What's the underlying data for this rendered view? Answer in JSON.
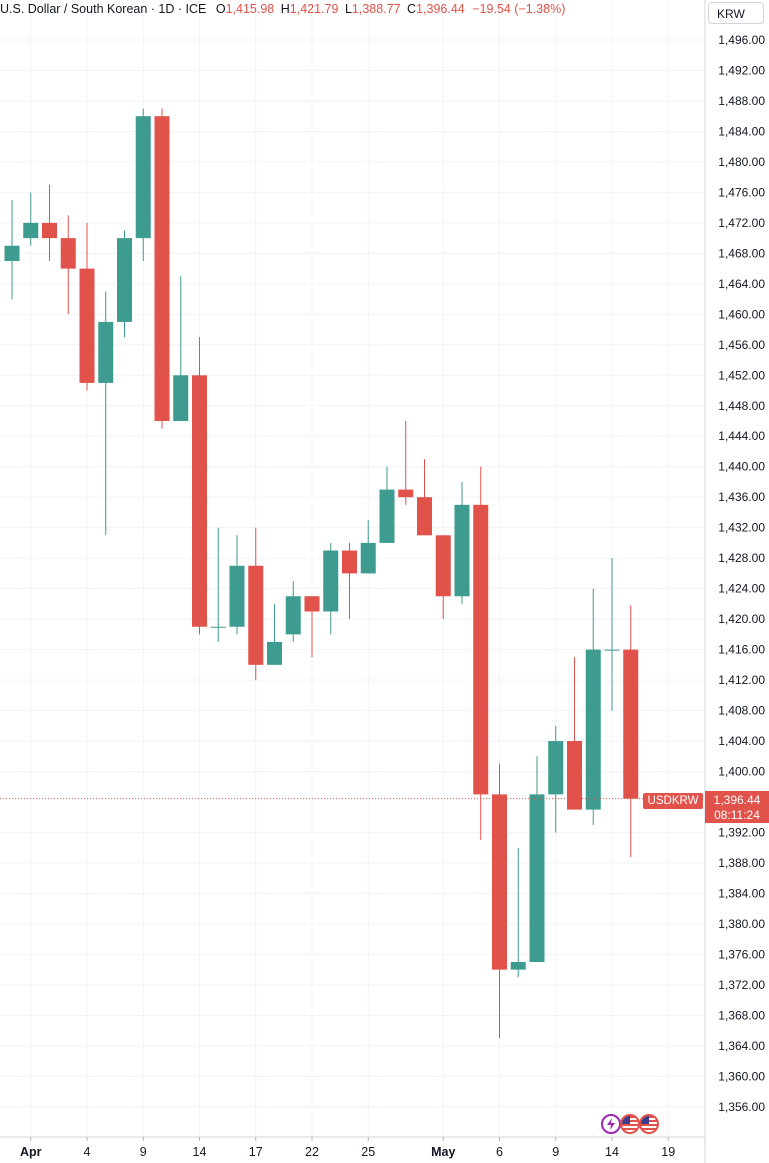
{
  "header": {
    "symbol": "U.S. Dollar / South Korean",
    "interval": "1D",
    "exchange": "ICE",
    "open_label": "O",
    "open": "1,415.98",
    "high_label": "H",
    "high": "1,421.79",
    "low_label": "L",
    "low": "1,388.77",
    "close_label": "C",
    "close": "1,396.44",
    "change": "−19.54 (−1.38%)"
  },
  "currency_button": "KRW",
  "last_price": {
    "symbol": "USDKRW",
    "value": "1,396.44",
    "countdown": "08:11:24"
  },
  "icons": [
    "lightning-icon",
    "us-flag-icon",
    "us-flag-icon"
  ],
  "colors": {
    "up": "#3d9b8f",
    "down": "#e0524a",
    "grid": "#f0f3fa",
    "text": "#131722"
  },
  "chart_data": {
    "type": "candlestick",
    "y_ticks": [
      "1,496.00",
      "1,492.00",
      "1,488.00",
      "1,484.00",
      "1,480.00",
      "1,476.00",
      "1,472.00",
      "1,468.00",
      "1,464.00",
      "1,460.00",
      "1,456.00",
      "1,452.00",
      "1,448.00",
      "1,444.00",
      "1,440.00",
      "1,436.00",
      "1,432.00",
      "1,428.00",
      "1,424.00",
      "1,420.00",
      "1,416.00",
      "1,412.00",
      "1,408.00",
      "1,404.00",
      "1,400.00",
      "1,392.00",
      "1,388.00",
      "1,384.00",
      "1,380.00",
      "1,376.00",
      "1,372.00",
      "1,368.00",
      "1,364.00",
      "1,360.00",
      "1,356.00"
    ],
    "x_ticks": [
      {
        "label": "Apr",
        "bold": true
      },
      {
        "label": "4"
      },
      {
        "label": "9"
      },
      {
        "label": "14"
      },
      {
        "label": "17"
      },
      {
        "label": "22"
      },
      {
        "label": "25"
      },
      {
        "label": "May",
        "bold": true
      },
      {
        "label": "6"
      },
      {
        "label": "9"
      },
      {
        "label": "14"
      },
      {
        "label": "19"
      }
    ],
    "ylim": [
      1353,
      1499
    ],
    "candles": [
      {
        "o": 1467,
        "h": 1475,
        "l": 1462,
        "c": 1469
      },
      {
        "o": 1470,
        "h": 1476,
        "l": 1469,
        "c": 1472
      },
      {
        "o": 1472,
        "h": 1477,
        "l": 1467,
        "c": 1470
      },
      {
        "o": 1470,
        "h": 1473,
        "l": 1460,
        "c": 1466
      },
      {
        "o": 1466,
        "h": 1472,
        "l": 1450,
        "c": 1451
      },
      {
        "o": 1451,
        "h": 1463,
        "l": 1431,
        "c": 1459
      },
      {
        "o": 1459,
        "h": 1471,
        "l": 1457,
        "c": 1470
      },
      {
        "o": 1470,
        "h": 1487,
        "l": 1467,
        "c": 1486
      },
      {
        "o": 1486,
        "h": 1487,
        "l": 1445,
        "c": 1446
      },
      {
        "o": 1446,
        "h": 1465,
        "l": 1446,
        "c": 1452
      },
      {
        "o": 1452,
        "h": 1457,
        "l": 1418,
        "c": 1419
      },
      {
        "o": 1419,
        "h": 1432,
        "l": 1417,
        "c": 1419
      },
      {
        "o": 1419,
        "h": 1431,
        "l": 1418,
        "c": 1427
      },
      {
        "o": 1427,
        "h": 1432,
        "l": 1412,
        "c": 1414
      },
      {
        "o": 1414,
        "h": 1422,
        "l": 1414,
        "c": 1417
      },
      {
        "o": 1418,
        "h": 1425,
        "l": 1417,
        "c": 1423
      },
      {
        "o": 1423,
        "h": 1423,
        "l": 1415,
        "c": 1421
      },
      {
        "o": 1421,
        "h": 1430,
        "l": 1418,
        "c": 1429
      },
      {
        "o": 1429,
        "h": 1430,
        "l": 1420,
        "c": 1426
      },
      {
        "o": 1426,
        "h": 1433,
        "l": 1426,
        "c": 1430
      },
      {
        "o": 1430,
        "h": 1440,
        "l": 1430,
        "c": 1437
      },
      {
        "o": 1437,
        "h": 1446,
        "l": 1435,
        "c": 1436
      },
      {
        "o": 1436,
        "h": 1441,
        "l": 1431,
        "c": 1431
      },
      {
        "o": 1431,
        "h": 1431,
        "l": 1420,
        "c": 1423
      },
      {
        "o": 1423,
        "h": 1438,
        "l": 1422,
        "c": 1435
      },
      {
        "o": 1435,
        "h": 1440,
        "l": 1391,
        "c": 1397
      },
      {
        "o": 1397,
        "h": 1401,
        "l": 1365,
        "c": 1374
      },
      {
        "o": 1374,
        "h": 1390,
        "l": 1373,
        "c": 1375
      },
      {
        "o": 1375,
        "h": 1402,
        "l": 1375,
        "c": 1397
      },
      {
        "o": 1397,
        "h": 1406,
        "l": 1392,
        "c": 1404
      },
      {
        "o": 1404,
        "h": 1415,
        "l": 1395,
        "c": 1395
      },
      {
        "o": 1395,
        "h": 1424,
        "l": 1393,
        "c": 1416
      },
      {
        "o": 1416,
        "h": 1428,
        "l": 1408,
        "c": 1416
      },
      {
        "o": 1416,
        "h": 1421.79,
        "l": 1388.77,
        "c": 1396.44
      }
    ]
  }
}
